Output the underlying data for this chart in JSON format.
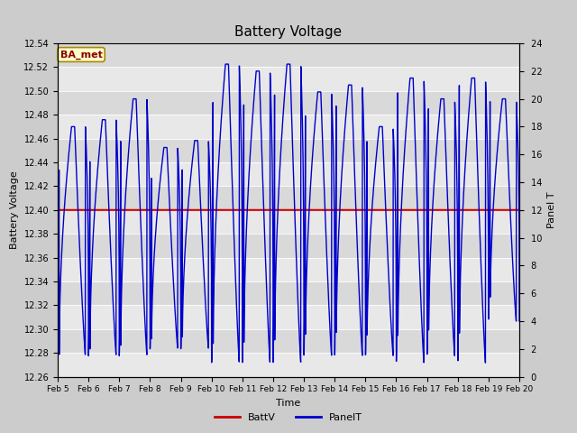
{
  "title": "Battery Voltage",
  "xlabel": "Time",
  "ylabel_left": "Battery Voltage",
  "ylabel_right": "Panel T",
  "batt_v": 12.4,
  "ylim_left": [
    12.26,
    12.54
  ],
  "ylim_right": [
    0,
    24
  ],
  "x_month": "Feb",
  "tick_days": [
    5,
    6,
    7,
    8,
    9,
    10,
    11,
    12,
    13,
    14,
    15,
    16,
    17,
    18,
    19,
    20
  ],
  "bg_color": "#cccccc",
  "plot_bg_color": "#d9d9d9",
  "band_color": "#e8e8e8",
  "line_color_batt": "#cc0000",
  "line_color_panel": "#0000cc",
  "label_box_text": "BA_met",
  "label_box_bg": "#ffffcc",
  "label_box_border": "#aa8800",
  "label_box_text_color": "#880000",
  "legend_batt": "BattV",
  "legend_panel": "PanelT",
  "grid_yticks_left": [
    12.26,
    12.28,
    12.3,
    12.32,
    12.34,
    12.36,
    12.38,
    12.4,
    12.42,
    12.44,
    12.46,
    12.48,
    12.5,
    12.52,
    12.54
  ],
  "grid_yticks_right": [
    0,
    2,
    4,
    6,
    8,
    10,
    12,
    14,
    16,
    18,
    20,
    22,
    24
  ],
  "day_peaks": [
    18,
    18.5,
    20,
    16.5,
    17,
    22.5,
    22,
    22.5,
    20.5,
    21,
    18,
    21.5,
    20,
    21.5,
    20
  ],
  "day_troughs": [
    1.5,
    1.5,
    1.5,
    2,
    2,
    1,
    1,
    1,
    1.5,
    1.5,
    1.5,
    1,
    1.5,
    1,
    4
  ]
}
